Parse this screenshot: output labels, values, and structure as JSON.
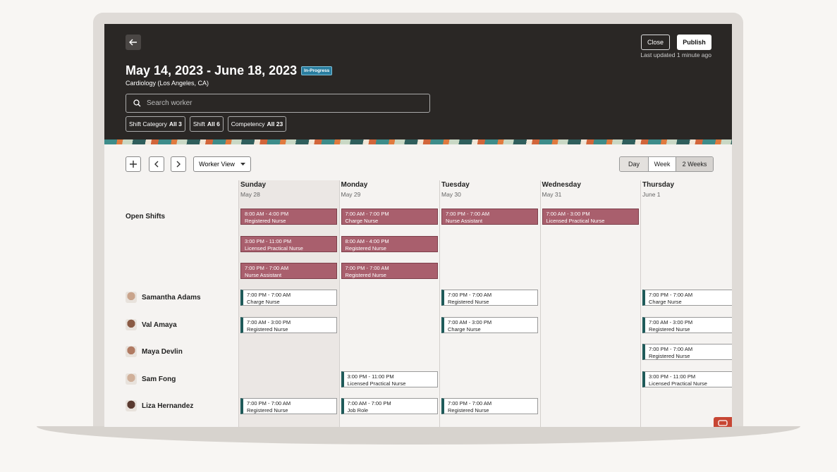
{
  "header": {
    "title": "May 14, 2023 - June 18, 2023",
    "status": "In-Progress",
    "subtitle": "Cardiology (Los Angeles, CA)",
    "search_placeholder": "Search worker",
    "close": "Close",
    "publish": "Publish",
    "last_updated": "Last updated 1 minute ago",
    "filters": [
      {
        "label": "Shift Category",
        "value": "All 3"
      },
      {
        "label": "Shift",
        "value": "All 6"
      },
      {
        "label": "Competency",
        "value": "All 23"
      }
    ]
  },
  "toolbar": {
    "view": "Worker View",
    "ranges": [
      "Day",
      "Week",
      "2 Weeks"
    ],
    "selected_range": 2
  },
  "schedule": {
    "highlighted_day": 0,
    "days": [
      {
        "name": "Sunday",
        "date": "May 28"
      },
      {
        "name": "Monday",
        "date": "May 29"
      },
      {
        "name": "Tuesday",
        "date": "May 30"
      },
      {
        "name": "Wednesday",
        "date": "May 31"
      },
      {
        "name": "Thursday",
        "date": "June 1"
      }
    ],
    "open_shifts": {
      "label": "Open Shifts",
      "cells": [
        [
          {
            "time": "8:00 AM - 4:00 PM",
            "role": "Registered Nurse"
          },
          {
            "time": "3:00 PM - 11:00 PM",
            "role": "Licensed Practical Nurse"
          },
          {
            "time": "7:00 PM - 7:00 AM",
            "role": "Nurse Assistant"
          }
        ],
        [
          {
            "time": "7:00 AM - 7:00 PM",
            "role": "Charge Nurse"
          },
          {
            "time": "8:00 AM - 4:00 PM",
            "role": "Registered Nurse"
          },
          {
            "time": "7:00 PM - 7:00 AM",
            "role": "Registered Nurse"
          }
        ],
        [
          {
            "time": "7:00 PM - 7:00 AM",
            "role": "Nurse Assistant"
          }
        ],
        [
          {
            "time": "7:00 AM - 3:00 PM",
            "role": "Licensed Practical Nurse"
          }
        ],
        []
      ]
    },
    "workers": [
      {
        "name": "Samantha Adams",
        "cells": [
          [
            {
              "time": "7:00 PM - 7:00 AM",
              "role": "Charge Nurse"
            }
          ],
          [],
          [
            {
              "time": "7:00 PM - 7:00 AM",
              "role": "Registered Nurse"
            }
          ],
          [],
          [
            {
              "time": "7:00 PM - 7:00 AM",
              "role": "Charge Nurse"
            }
          ]
        ]
      },
      {
        "name": "Val Amaya",
        "cells": [
          [
            {
              "time": "7:00 AM - 3:00 PM",
              "role": "Registered Nurse"
            }
          ],
          [],
          [
            {
              "time": "7:00 AM - 3:00 PM",
              "role": "Charge Nurse"
            }
          ],
          [],
          [
            {
              "time": "7:00 AM - 3:00 PM",
              "role": "Registered Nurse"
            }
          ]
        ]
      },
      {
        "name": "Maya Devlin",
        "cells": [
          [],
          [],
          [],
          [],
          [
            {
              "time": "7:00 PM - 7:00 AM",
              "role": "Registered Nurse"
            }
          ]
        ]
      },
      {
        "name": "Sam Fong",
        "cells": [
          [],
          [
            {
              "time": "3:00 PM - 11:00 PM",
              "role": "Licensed Practical Nurse"
            }
          ],
          [],
          [],
          [
            {
              "time": "3:00 PM - 11:00 PM",
              "role": "Licensed Practical Nurse"
            }
          ]
        ]
      },
      {
        "name": "Liza Hernandez",
        "cells": [
          [
            {
              "time": "7:00 PM - 7:00 AM",
              "role": "Registered Nurse"
            }
          ],
          [
            {
              "time": "7:00 AM - 7:00 PM",
              "role": "Job Role"
            }
          ],
          [
            {
              "time": "7:00 PM - 7:00 AM",
              "role": "Registered Nurse"
            }
          ],
          [],
          []
        ]
      }
    ]
  }
}
